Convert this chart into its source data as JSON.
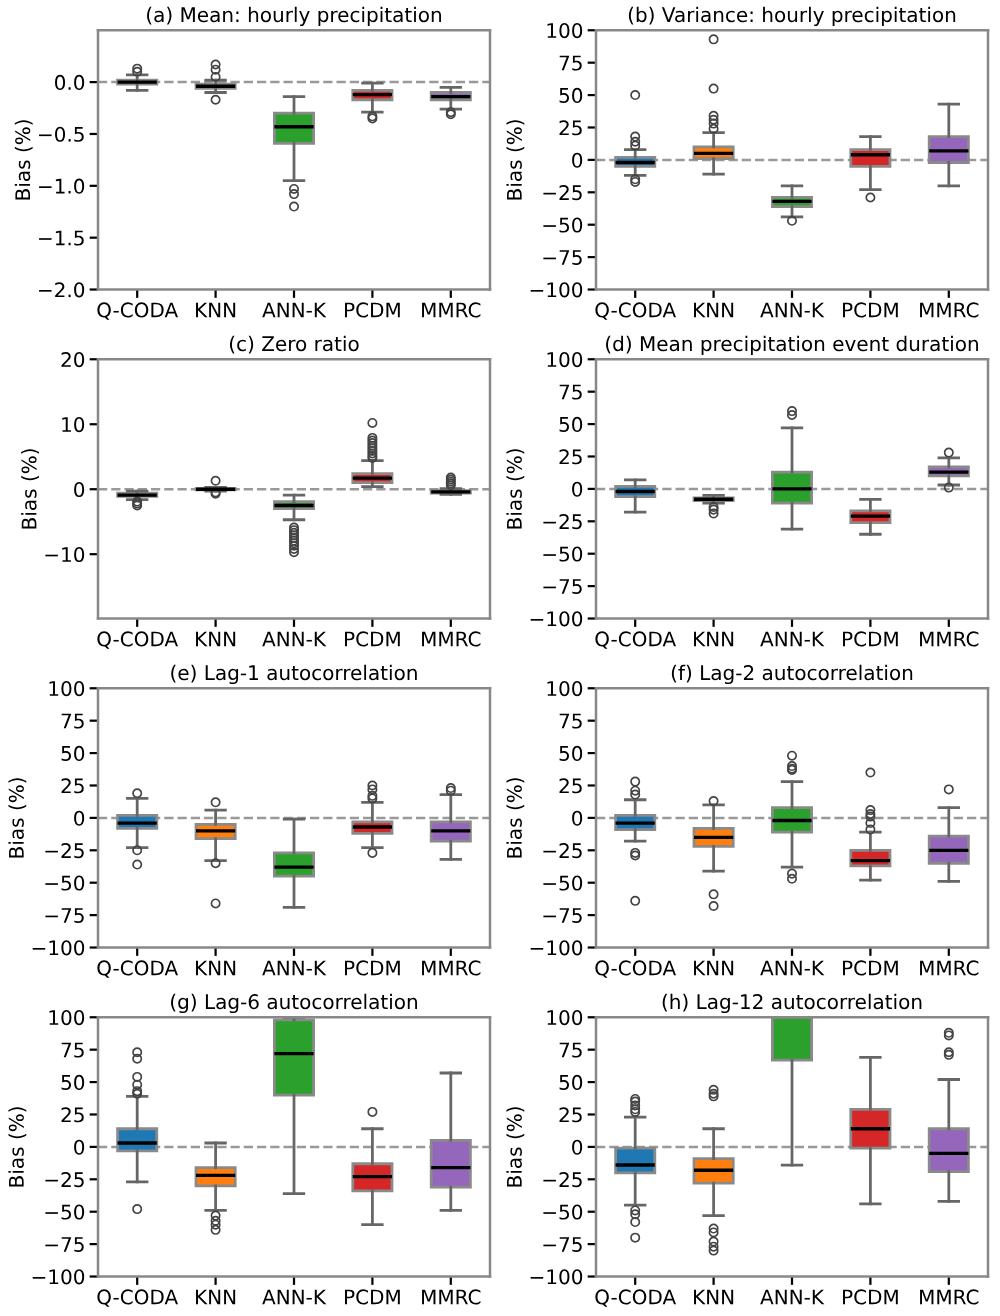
{
  "chart_data": [
    {
      "type": "box",
      "title": "(a) Mean: hourly precipitation",
      "ylabel": "Bias (%)",
      "categories": [
        "Q-CODA",
        "KNN",
        "ANN-K",
        "PCDM",
        "MMRC"
      ],
      "colors": [
        "#1f77b4",
        "#ff7f0e",
        "#2ca02c",
        "#d62728",
        "#9467bd"
      ],
      "ylim": [
        -2.0,
        0.5
      ],
      "yticks": [
        {
          "value": -2,
          "label": "−2.0"
        },
        {
          "value": -1.5,
          "label": "−1.5"
        },
        {
          "value": -1,
          "label": "−1.0"
        },
        {
          "value": -0.5,
          "label": "−0.5"
        },
        {
          "value": 0,
          "label": "0.0"
        }
      ],
      "ref_lines": [
        {
          "axis": "y",
          "value": 0,
          "color": "#999999",
          "line_style": "dashed"
        }
      ],
      "boxes": [
        {
          "low": -0.08,
          "q1": -0.02,
          "median": 0.0,
          "q3": 0.02,
          "high": 0.07,
          "outliers": [
            0.1,
            0.13
          ]
        },
        {
          "low": -0.1,
          "q1": -0.06,
          "median": -0.04,
          "q3": -0.02,
          "high": 0.02,
          "outliers": [
            0.05,
            0.12,
            0.17,
            -0.17
          ]
        },
        {
          "low": -0.95,
          "q1": -0.59,
          "median": -0.43,
          "q3": -0.3,
          "high": -0.14,
          "outliers": [
            -1.03,
            -1.08,
            -1.2
          ]
        },
        {
          "low": -0.29,
          "q1": -0.17,
          "median": -0.12,
          "q3": -0.08,
          "high": -0.01,
          "outliers": [
            -0.33,
            -0.35
          ]
        },
        {
          "low": -0.26,
          "q1": -0.17,
          "median": -0.14,
          "q3": -0.1,
          "high": -0.05,
          "outliers": [
            -0.29,
            -0.31
          ]
        }
      ]
    },
    {
      "type": "box",
      "title": "(b) Variance: hourly precipitation",
      "ylabel": "Bias (%)",
      "categories": [
        "Q-CODA",
        "KNN",
        "ANN-K",
        "PCDM",
        "MMRC"
      ],
      "colors": [
        "#1f77b4",
        "#ff7f0e",
        "#2ca02c",
        "#d62728",
        "#9467bd"
      ],
      "ylim": [
        -100,
        100
      ],
      "yticks": [
        -100,
        -75,
        -50,
        -25,
        0,
        25,
        50,
        75,
        100
      ],
      "ref_lines": [
        {
          "axis": "y",
          "value": 0,
          "color": "#999999",
          "line_style": "dashed"
        }
      ],
      "boxes": [
        {
          "low": -12,
          "q1": -5,
          "median": -2,
          "q3": 2,
          "high": 8,
          "outliers": [
            50,
            18,
            14,
            11,
            -15,
            -17
          ]
        },
        {
          "low": -11,
          "q1": 1,
          "median": 5,
          "q3": 10,
          "high": 21,
          "outliers": [
            93,
            55,
            34,
            31,
            28,
            24
          ]
        },
        {
          "low": -44,
          "q1": -36,
          "median": -32,
          "q3": -29,
          "high": -20,
          "outliers": [
            -47
          ]
        },
        {
          "low": -23,
          "q1": -5,
          "median": 4,
          "q3": 8,
          "high": 18,
          "outliers": [
            -29
          ]
        },
        {
          "low": -20,
          "q1": -2,
          "median": 7,
          "q3": 18,
          "high": 43
        }
      ]
    },
    {
      "type": "box",
      "title": "(c) Zero ratio",
      "ylabel": "Bias (%)",
      "categories": [
        "Q-CODA",
        "KNN",
        "ANN-K",
        "PCDM",
        "MMRC"
      ],
      "colors": [
        "#1f77b4",
        "#ff7f0e",
        "#2ca02c",
        "#d62728",
        "#9467bd"
      ],
      "ylim": [
        -19.9,
        20
      ],
      "yticks": [
        -10,
        0,
        10,
        20
      ],
      "ref_lines": [
        {
          "axis": "y",
          "value": 0,
          "color": "#999999",
          "line_style": "dashed"
        }
      ],
      "boxes": [
        {
          "low": -1.6,
          "q1": -1.1,
          "median": -0.9,
          "q3": -0.6,
          "high": -0.3,
          "outliers": [
            -1.9,
            -2.2,
            -2.5
          ]
        },
        {
          "low": -0.3,
          "q1": -0.1,
          "median": 0.0,
          "q3": 0.1,
          "high": 0.3,
          "outliers": [
            1.3,
            -0.5,
            -0.7
          ]
        },
        {
          "low": -4.7,
          "q1": -3.0,
          "median": -2.5,
          "q3": -1.9,
          "high": -0.9,
          "outliers": [
            -5.9,
            -6.3,
            -6.7,
            -7.1,
            -7.5,
            -7.9,
            -8.3,
            -8.7,
            -9.2,
            -9.7
          ]
        },
        {
          "low": 0.4,
          "q1": 1.0,
          "median": 1.7,
          "q3": 2.4,
          "high": 4.4,
          "outliers": [
            10.2,
            7.9,
            7.5,
            7.1,
            6.7,
            6.3,
            5.9,
            5.5,
            5.1,
            4.8
          ]
        },
        {
          "low": -0.8,
          "q1": -0.6,
          "median": -0.4,
          "q3": -0.2,
          "high": 0.1,
          "outliers": [
            1.8,
            1.5,
            1.2,
            0.9,
            0.6
          ]
        }
      ]
    },
    {
      "type": "box",
      "title": "(d) Mean precipitation event duration",
      "ylabel": "Bias (%)",
      "categories": [
        "Q-CODA",
        "KNN",
        "ANN-K",
        "PCDM",
        "MMRC"
      ],
      "colors": [
        "#1f77b4",
        "#ff7f0e",
        "#2ca02c",
        "#d62728",
        "#9467bd"
      ],
      "ylim": [
        -100,
        100
      ],
      "yticks": [
        -100,
        -75,
        -50,
        -25,
        0,
        25,
        50,
        75,
        100
      ],
      "ref_lines": [
        {
          "axis": "y",
          "value": 0,
          "color": "#999999",
          "line_style": "dashed"
        }
      ],
      "boxes": [
        {
          "low": -18,
          "q1": -6,
          "median": -2,
          "q3": 2,
          "high": 7
        },
        {
          "low": -11,
          "q1": -9,
          "median": -8,
          "q3": -7,
          "high": -5,
          "outliers": [
            -14,
            -16,
            -19
          ]
        },
        {
          "low": -31,
          "q1": -11,
          "median": 0,
          "q3": 13,
          "high": 47,
          "outliers": [
            60,
            57
          ]
        },
        {
          "low": -35,
          "q1": -26,
          "median": -21,
          "q3": -17,
          "high": -8
        },
        {
          "low": 3,
          "q1": 10,
          "median": 13,
          "q3": 17,
          "high": 24,
          "outliers": [
            28,
            1
          ]
        }
      ]
    },
    {
      "type": "box",
      "title": "(e) Lag-1 autocorrelation",
      "ylabel": "Bias (%)",
      "categories": [
        "Q-CODA",
        "KNN",
        "ANN-K",
        "PCDM",
        "MMRC"
      ],
      "colors": [
        "#1f77b4",
        "#ff7f0e",
        "#2ca02c",
        "#d62728",
        "#9467bd"
      ],
      "ylim": [
        -100,
        100
      ],
      "yticks": [
        -100,
        -75,
        -50,
        -25,
        0,
        25,
        50,
        75,
        100
      ],
      "ref_lines": [
        {
          "axis": "y",
          "value": 0,
          "color": "#999999",
          "line_style": "dashed"
        }
      ],
      "boxes": [
        {
          "low": -23,
          "q1": -8,
          "median": -4,
          "q3": 2,
          "high": 15,
          "outliers": [
            19,
            -25,
            -36
          ]
        },
        {
          "low": -33,
          "q1": -16,
          "median": -10,
          "q3": -5,
          "high": 6,
          "outliers": [
            12,
            -35,
            -66
          ]
        },
        {
          "low": -69,
          "q1": -45,
          "median": -38,
          "q3": -27,
          "high": -1
        },
        {
          "low": -23,
          "q1": -12,
          "median": -7,
          "q3": -3,
          "high": 12,
          "outliers": [
            25,
            22,
            17,
            15,
            -27
          ]
        },
        {
          "low": -32,
          "q1": -18,
          "median": -10,
          "q3": -3,
          "high": 18,
          "outliers": [
            23,
            21
          ]
        }
      ]
    },
    {
      "type": "box",
      "title": "(f) Lag-2 autocorrelation",
      "ylabel": "Bias (%)",
      "categories": [
        "Q-CODA",
        "KNN",
        "ANN-K",
        "PCDM",
        "MMRC"
      ],
      "colors": [
        "#1f77b4",
        "#ff7f0e",
        "#2ca02c",
        "#d62728",
        "#9467bd"
      ],
      "ylim": [
        -100,
        100
      ],
      "yticks": [
        -100,
        -75,
        -50,
        -25,
        0,
        25,
        50,
        75,
        100
      ],
      "ref_lines": [
        {
          "axis": "y",
          "value": 0,
          "color": "#999999",
          "line_style": "dashed"
        }
      ],
      "boxes": [
        {
          "low": -18,
          "q1": -9,
          "median": -4,
          "q3": 2,
          "high": 14,
          "outliers": [
            28,
            21,
            18,
            -27,
            -29,
            -64
          ]
        },
        {
          "low": -41,
          "q1": -22,
          "median": -15,
          "q3": -8,
          "high": 10,
          "outliers": [
            13,
            -59,
            -68
          ]
        },
        {
          "low": -38,
          "q1": -11,
          "median": -2,
          "q3": 8,
          "high": 28,
          "outliers": [
            48,
            40,
            38,
            37,
            -43,
            -47
          ]
        },
        {
          "low": -48,
          "q1": -37,
          "median": -33,
          "q3": -25,
          "high": -11,
          "outliers": [
            35,
            6,
            3,
            1,
            -4,
            -9
          ]
        },
        {
          "low": -49,
          "q1": -35,
          "median": -25,
          "q3": -14,
          "high": 8,
          "outliers": [
            22
          ]
        }
      ]
    },
    {
      "type": "box",
      "title": "(g) Lag-6 autocorrelation",
      "ylabel": "Bias (%)",
      "categories": [
        "Q-CODA",
        "KNN",
        "ANN-K",
        "PCDM",
        "MMRC"
      ],
      "colors": [
        "#1f77b4",
        "#ff7f0e",
        "#2ca02c",
        "#d62728",
        "#9467bd"
      ],
      "ylim": [
        -100,
        100
      ],
      "yticks": [
        -100,
        -75,
        -50,
        -25,
        0,
        25,
        50,
        75,
        100
      ],
      "ref_lines": [
        {
          "axis": "y",
          "value": 0,
          "color": "#999999",
          "line_style": "dashed"
        }
      ],
      "boxes": [
        {
          "low": -27,
          "q1": -3,
          "median": 3,
          "q3": 14,
          "high": 39,
          "outliers": [
            73,
            68,
            54,
            48,
            43,
            41,
            -48
          ]
        },
        {
          "low": -49,
          "q1": -30,
          "median": -22,
          "q3": -16,
          "high": 3,
          "outliers": [
            -53,
            -57,
            -60,
            -64
          ]
        },
        {
          "low": -36,
          "q1": 40,
          "median": 72,
          "q3": 98,
          "high": 100
        },
        {
          "low": -60,
          "q1": -34,
          "median": -23,
          "q3": -13,
          "high": 14,
          "outliers": [
            27
          ]
        },
        {
          "low": -49,
          "q1": -31,
          "median": -16,
          "q3": 5,
          "high": 57
        }
      ]
    },
    {
      "type": "box",
      "title": "(h) Lag-12 autocorrelation",
      "ylabel": "Bias (%)",
      "categories": [
        "Q-CODA",
        "KNN",
        "ANN-K",
        "PCDM",
        "MMRC"
      ],
      "colors": [
        "#1f77b4",
        "#ff7f0e",
        "#2ca02c",
        "#d62728",
        "#9467bd"
      ],
      "ylim": [
        -100,
        100
      ],
      "yticks": [
        -100,
        -75,
        -50,
        -25,
        0,
        25,
        50,
        75,
        100
      ],
      "ref_lines": [
        {
          "axis": "y",
          "value": 0,
          "color": "#999999",
          "line_style": "dashed"
        }
      ],
      "boxes": [
        {
          "low": -45,
          "q1": -20,
          "median": -14,
          "q3": -1,
          "high": 23,
          "outliers": [
            37,
            35,
            32,
            29,
            27,
            -49,
            -52,
            -58,
            -70
          ]
        },
        {
          "low": -53,
          "q1": -28,
          "median": -18,
          "q3": -9,
          "high": 14,
          "outliers": [
            44,
            41,
            39,
            -63,
            -66,
            -73,
            -77,
            -80
          ]
        },
        {
          "low": -14,
          "q1": 67,
          "median": null,
          "q3": 100,
          "high": null
        },
        {
          "low": -44,
          "q1": -1,
          "median": 14,
          "q3": 29,
          "high": 69
        },
        {
          "low": -42,
          "q1": -19,
          "median": -5,
          "q3": 14,
          "high": 52,
          "outliers": [
            88,
            86,
            73,
            71
          ]
        }
      ]
    }
  ]
}
